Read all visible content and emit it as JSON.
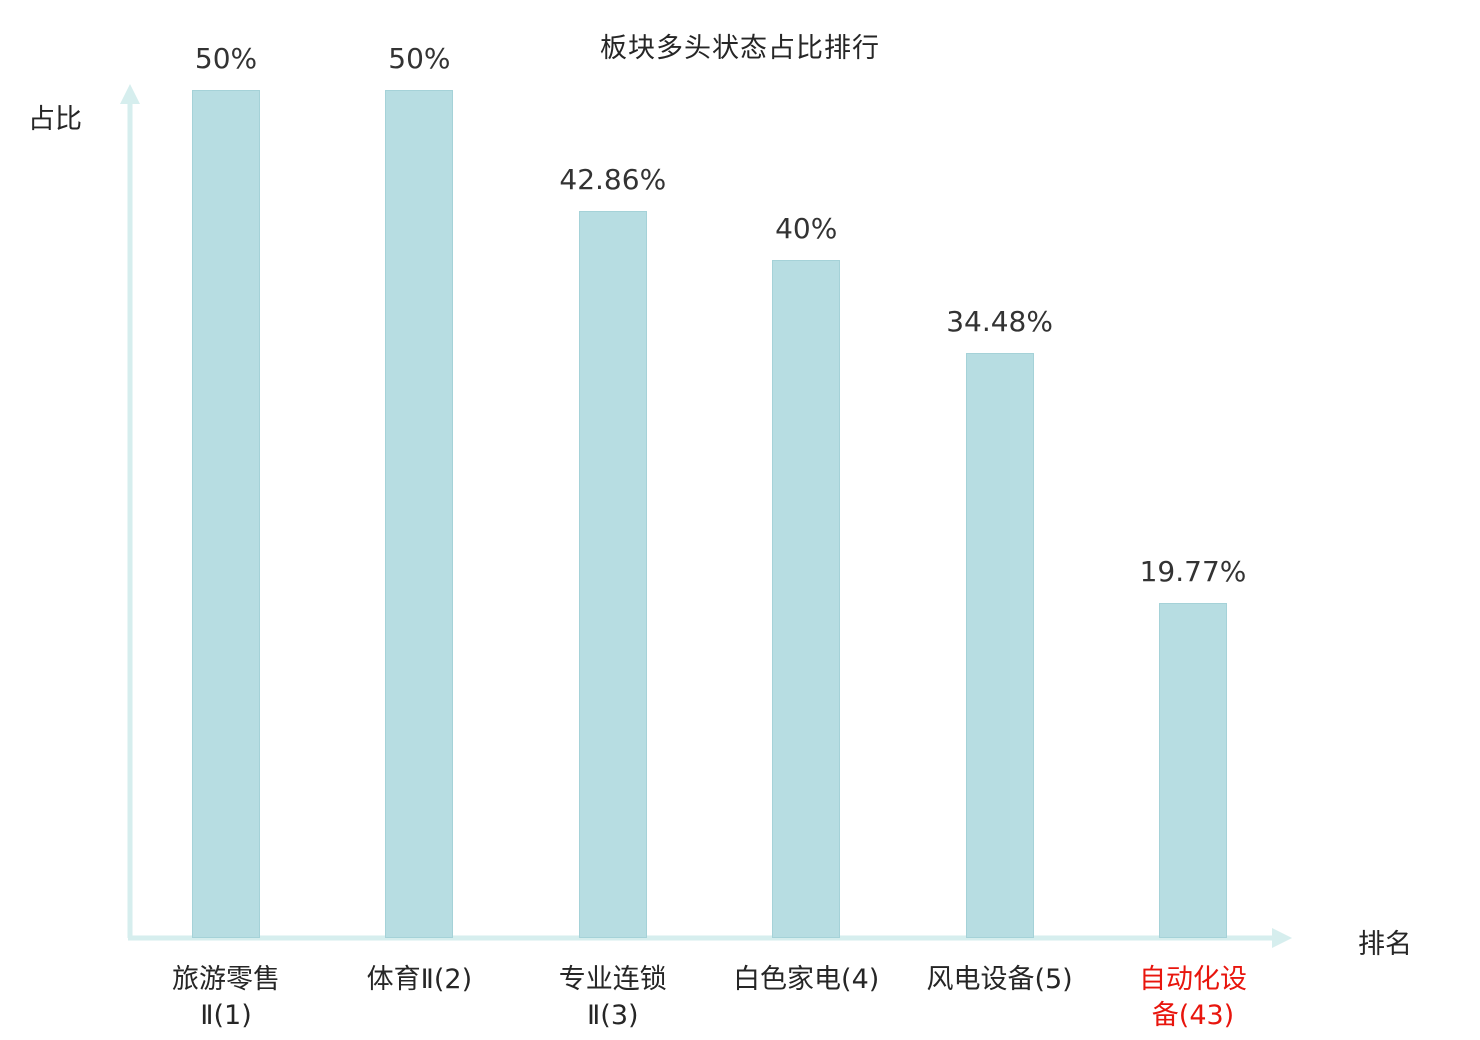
{
  "chart_data": {
    "type": "bar",
    "title": "板块多头状态占比排行",
    "xlabel": "排名",
    "ylabel": "占比",
    "categories": [
      "旅游零售Ⅱ(1)",
      "体育Ⅱ(2)",
      "专业连锁Ⅱ(3)",
      "白色家电(4)",
      "风电设备(5)",
      "自动化设备(43)"
    ],
    "category_lines": [
      [
        "旅游零售",
        "Ⅱ(1)"
      ],
      [
        "体育Ⅱ(2)"
      ],
      [
        "专业连锁",
        "Ⅱ(3)"
      ],
      [
        "白色家电(4)"
      ],
      [
        "风电设备(5)"
      ],
      [
        "自动化设",
        "备(43)"
      ]
    ],
    "values": [
      50,
      50,
      42.86,
      40,
      34.48,
      19.77
    ],
    "value_labels": [
      "50%",
      "50%",
      "42.86%",
      "40%",
      "34.48%",
      "19.77%"
    ],
    "ylim": [
      0,
      53
    ],
    "grid": false,
    "legend": "none",
    "highlight_index": 5,
    "colors": {
      "bar_fill": "#b7dde2",
      "bar_border": "#a5d2d8",
      "axis": "#d6eeee",
      "text": "#262626",
      "highlight_text": "#e8150d"
    }
  }
}
